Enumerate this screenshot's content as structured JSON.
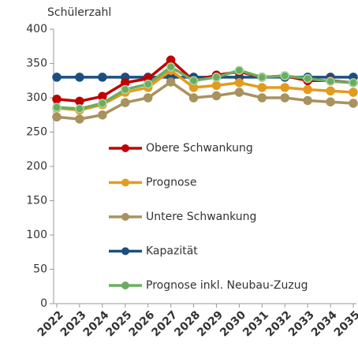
{
  "chart_data": {
    "type": "line",
    "y_axis_label": "Schülerzahl",
    "x": [
      "2022",
      "2023",
      "2024",
      "2025",
      "2026",
      "2027",
      "2028",
      "2029",
      "2030",
      "2031",
      "2032",
      "2033",
      "2034",
      "2035"
    ],
    "ylim": [
      0,
      400
    ],
    "yticks": [
      0,
      50,
      100,
      150,
      200,
      250,
      300,
      350,
      400
    ],
    "grid": false,
    "legend": "center",
    "series": [
      {
        "name": "Obere Schwankung",
        "color": "#c00000",
        "values": [
          298,
          295,
          302,
          322,
          328,
          355,
          325,
          333,
          338,
          330,
          332,
          325,
          325,
          322
        ]
      },
      {
        "name": "Prognose",
        "color": "#e39b1e",
        "values": [
          285,
          282,
          290,
          308,
          315,
          340,
          315,
          318,
          322,
          315,
          315,
          312,
          310,
          308
        ]
      },
      {
        "name": "Untere Schwankung",
        "color": "#a8925f",
        "values": [
          272,
          269,
          275,
          293,
          300,
          323,
          300,
          303,
          308,
          300,
          300,
          296,
          294,
          292
        ]
      },
      {
        "name": "Kapazität",
        "color": "#1c4f80",
        "values": [
          330,
          330,
          330,
          330,
          330,
          330,
          330,
          330,
          330,
          330,
          330,
          330,
          330,
          330
        ]
      },
      {
        "name": "Prognose inkl. Neubau-Zuzug",
        "color": "#6aad62",
        "values": [
          286,
          284,
          292,
          312,
          320,
          345,
          325,
          330,
          340,
          330,
          332,
          328,
          324,
          322
        ]
      }
    ]
  }
}
